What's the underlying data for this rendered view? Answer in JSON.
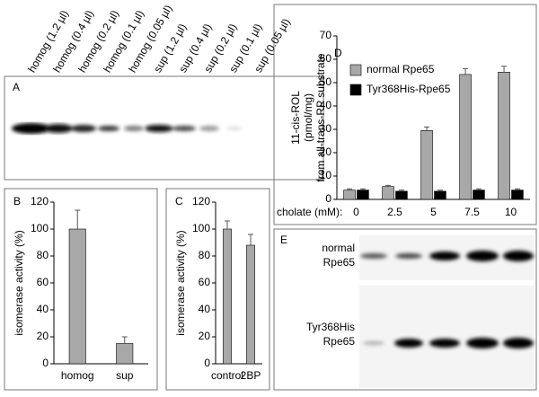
{
  "blot_a": {
    "panel_label": "A",
    "lanes": [
      "homog (1.2 µl)",
      "homog (0.4 µl)",
      "homog (0.2 µl)",
      "homog (0.1 µl)",
      "homog (0.05 µl)",
      "sup (1.2 µl)",
      "sup (0.4 µl)",
      "sup (0.2 µl)",
      "sup (0.1 µl)",
      "sup (0.05 µl)"
    ]
  },
  "blot_e": {
    "panel_label": "E",
    "rows": [
      [
        "normal",
        "Rpe65"
      ],
      [
        "Tyr368His",
        "Rpe65"
      ]
    ]
  },
  "chart_data": [
    {
      "type": "bar",
      "panel_label": "B",
      "y_label": "isomerase activity (%)",
      "categories": [
        "homog",
        "sup"
      ],
      "values": [
        100,
        15
      ],
      "errors": [
        14,
        5
      ],
      "color": "#a8a8a8",
      "ylim": [
        0,
        120
      ],
      "yticks": [
        0,
        20,
        40,
        60,
        80,
        100,
        120
      ]
    },
    {
      "type": "bar",
      "panel_label": "C",
      "y_label": "isomerase activity (%)",
      "categories": [
        "control",
        "2BP"
      ],
      "values": [
        100,
        88
      ],
      "errors": [
        6,
        8
      ],
      "color": "#a8a8a8",
      "ylim": [
        0,
        120
      ],
      "yticks": [
        0,
        20,
        40,
        60,
        80,
        100,
        120
      ]
    },
    {
      "type": "bar",
      "panel_label": "D",
      "y_label": [
        "11-cis-ROL",
        "(pmol/mg)",
        "from all-trans-RP substrate"
      ],
      "x_label": "cholate (mM):",
      "categories": [
        "0",
        "2.5",
        "5",
        "7.5",
        "10"
      ],
      "series": [
        {
          "name": "normal Rpe65",
          "color": "#a8a8a8",
          "values": [
            4,
            5.5,
            29.5,
            53.5,
            54.5
          ],
          "errors": [
            0.5,
            0.5,
            1.5,
            2.5,
            2.5
          ]
        },
        {
          "name": "Tyr368His-Rpe65",
          "color": "#000000",
          "values": [
            4,
            3.5,
            3.5,
            4,
            4
          ],
          "errors": [
            0.5,
            0.5,
            0.5,
            0.5,
            0.5
          ]
        }
      ],
      "ylim": [
        0,
        70
      ],
      "yticks": [
        0,
        10,
        20,
        30,
        40,
        50,
        60,
        70
      ]
    }
  ]
}
